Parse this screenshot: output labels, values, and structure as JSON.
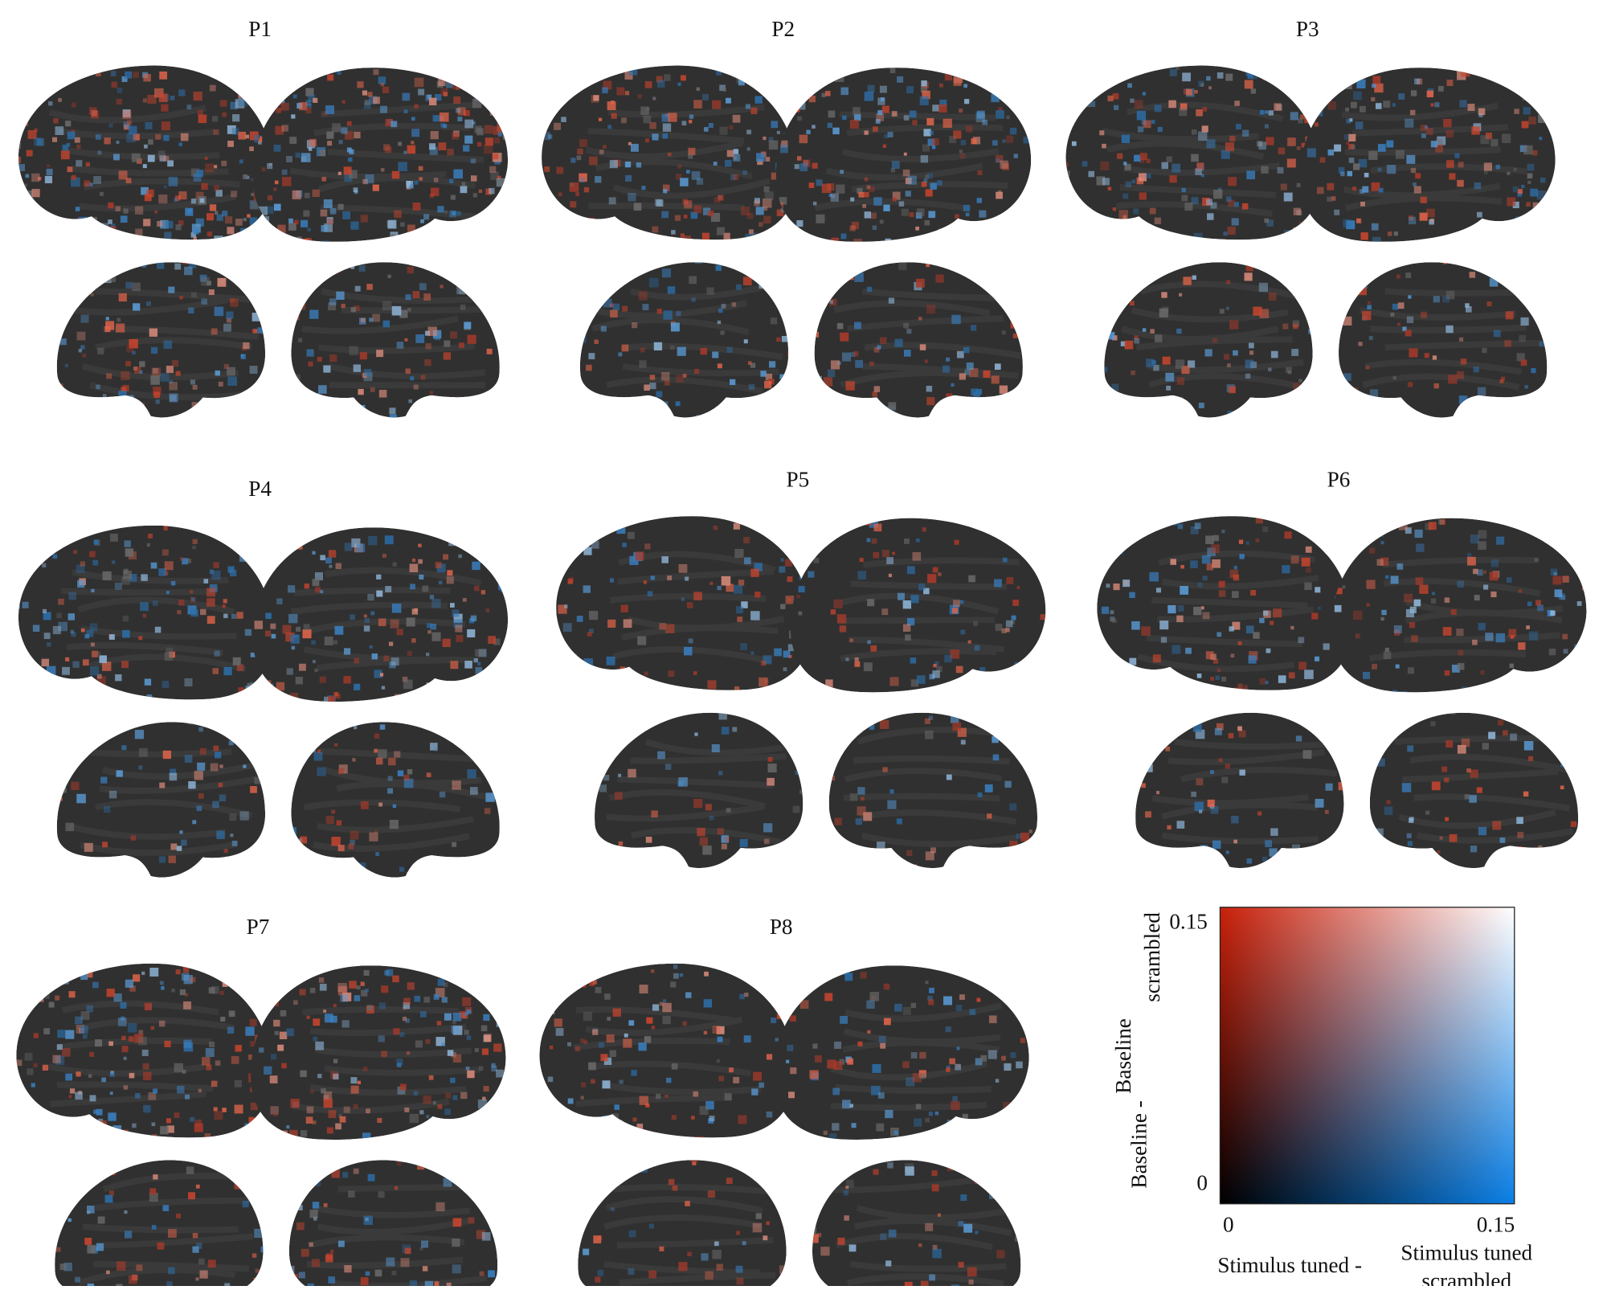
{
  "panels": [
    {
      "label": "P1"
    },
    {
      "label": "P2"
    },
    {
      "label": "P3"
    },
    {
      "label": "P4"
    },
    {
      "label": "P5"
    },
    {
      "label": "P6"
    },
    {
      "label": "P7"
    },
    {
      "label": "P8"
    }
  ],
  "chart_data": {
    "type": "colormap2d",
    "xlim": [
      0,
      0.15
    ],
    "ylim": [
      0,
      0.15
    ],
    "xticks": [
      0,
      0.15
    ],
    "yticks": [
      0,
      0.15
    ],
    "x_label_lines": [
      "Stimulus tuned -",
      "Stimulus tuned",
      "scrambled"
    ],
    "y_label_lines": [
      "Baseline -",
      "Baseline",
      "scrambled"
    ],
    "corner_colors": {
      "bottom_left": "#000000",
      "bottom_right": "#0a7fe6",
      "top_left": "#c8200a",
      "top_right": "#ffffff"
    }
  }
}
